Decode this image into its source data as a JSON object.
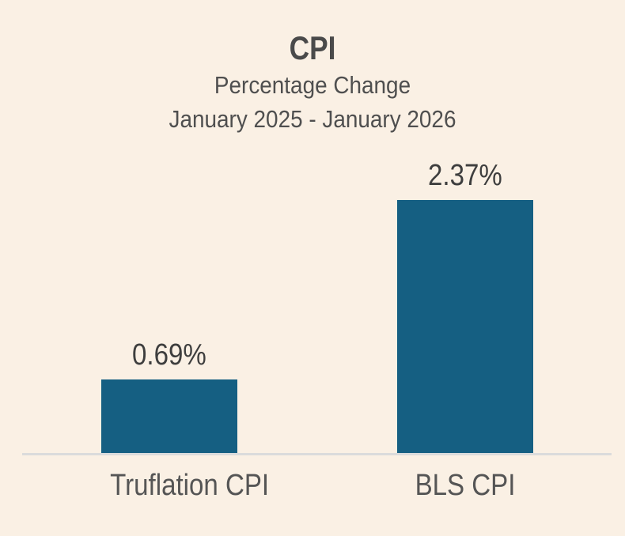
{
  "chart_data": {
    "type": "bar",
    "title": "CPI",
    "subtitle_line1": "Percentage Change",
    "subtitle_line2": "January 2025 - January 2026",
    "categories": [
      "Truflation CPI",
      "BLS CPI"
    ],
    "values": [
      0.69,
      2.37
    ],
    "value_labels": [
      "0.69%",
      "2.37%"
    ],
    "xlabel": "",
    "ylabel": "",
    "ylim": [
      0,
      2.37
    ],
    "grid": false,
    "legend": false,
    "colors": {
      "bar": "#155f82",
      "background": "#faf0e4",
      "axis_line": "#dbdbdb",
      "title_text": "#4a4a4a",
      "label_text": "#555555",
      "value_text": "#3e3e3e"
    }
  }
}
